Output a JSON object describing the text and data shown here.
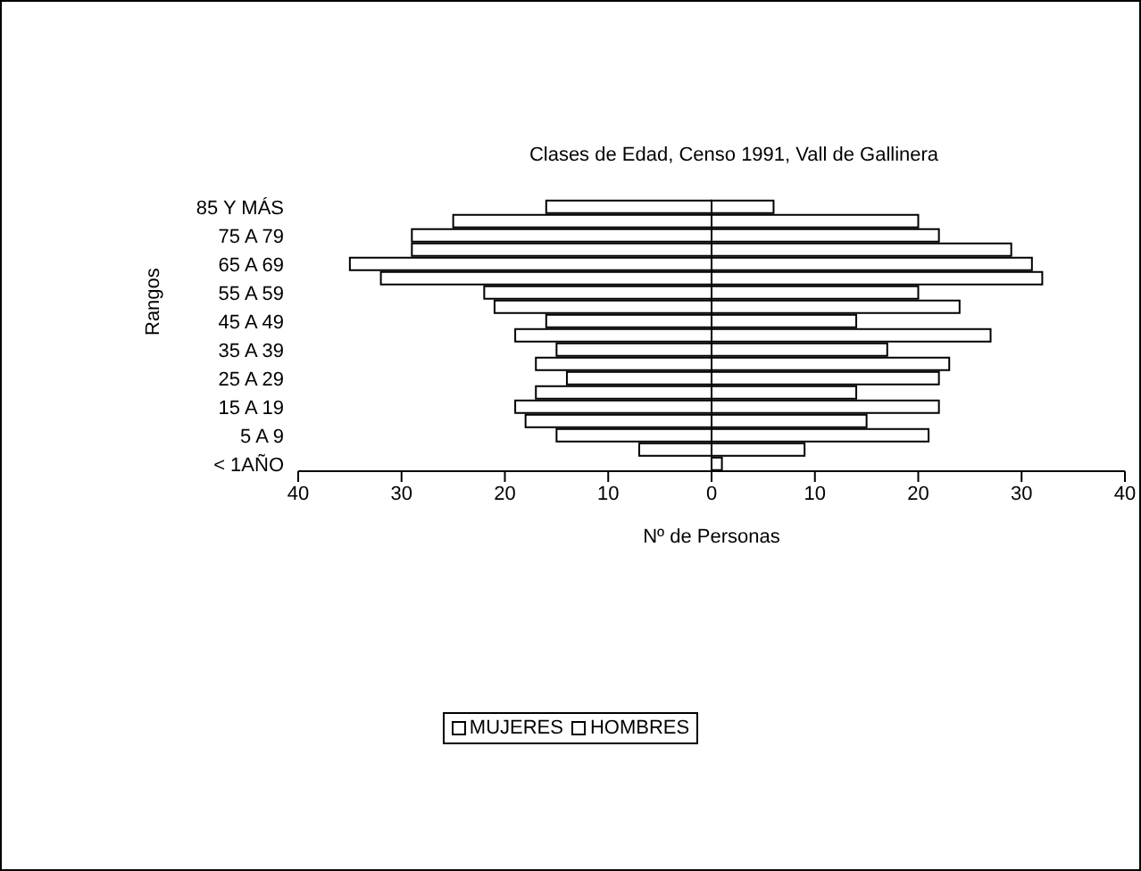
{
  "chart_data": {
    "type": "bar",
    "orientation": "horizontal",
    "stacked": true,
    "title": "Clases de Edad, Censo 1991, Vall de Gallinera",
    "xlabel": "Nº de Personas",
    "ylabel": "Rangos",
    "categories": [
      "85 Y MÁS",
      null,
      "75 A 79",
      null,
      "65 A 69",
      null,
      "55 A 59",
      null,
      "45 A 49",
      null,
      "35 A 39",
      null,
      "25 A 29",
      null,
      "15 A 19",
      null,
      "5 A 9",
      null,
      "< 1AÑO"
    ],
    "series": [
      {
        "name": "MUJERES",
        "color": "#ffffff",
        "values": [
          -16,
          -25,
          -29,
          -29,
          -35,
          -32,
          -22,
          -21,
          -16,
          -19,
          -15,
          -17,
          -14,
          -17,
          -19,
          -18,
          -15,
          -7,
          0
        ]
      },
      {
        "name": "HOMBRES",
        "color": "#ffffff",
        "values": [
          6,
          20,
          22,
          29,
          31,
          32,
          20,
          24,
          14,
          27,
          17,
          23,
          22,
          14,
          22,
          15,
          21,
          9,
          1
        ]
      }
    ],
    "xlim": [
      -40,
      40
    ],
    "xticks": [
      {
        "value": -40,
        "label": "40"
      },
      {
        "value": -30,
        "label": "30"
      },
      {
        "value": -20,
        "label": "20"
      },
      {
        "value": -10,
        "label": "10"
      },
      0,
      10,
      20,
      30,
      40
    ],
    "ref_lines": [
      {
        "axis": "x",
        "value": 0
      }
    ],
    "grid": false,
    "legend": "bottom"
  }
}
